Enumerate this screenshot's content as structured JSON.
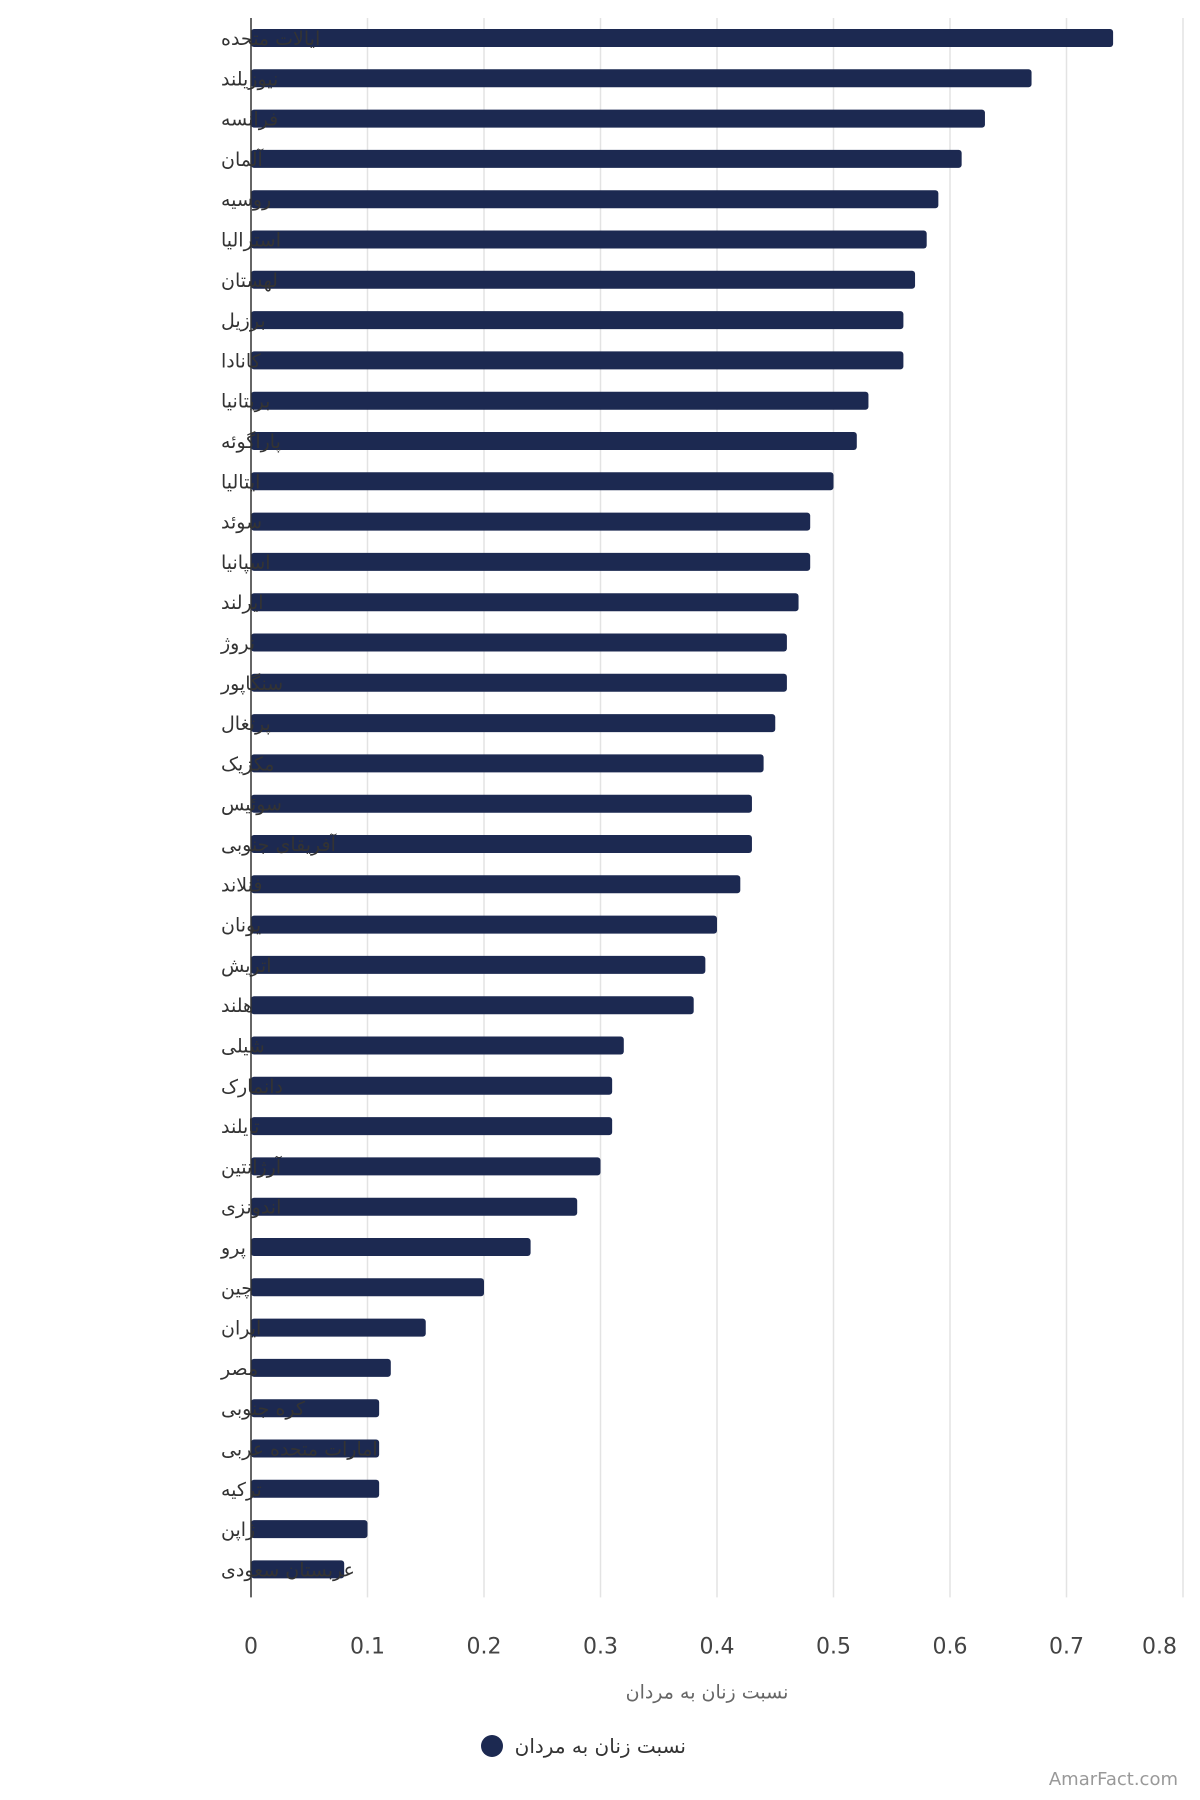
{
  "chart_data": {
    "type": "bar",
    "orientation": "horizontal",
    "categories": [
      "ایالات متحده",
      "نیوزیلند",
      "فرانسه",
      "آلمان",
      "روسیه",
      "استرالیا",
      "لهستان",
      "برزیل",
      "کانادا",
      "بریتانیا",
      "پاراگوئه",
      "ایتالیا",
      "سوئد",
      "اسپانیا",
      "ایرلند",
      "نروژ",
      "سنگاپور",
      "پرتغال",
      "مکزیک",
      "سوئیس",
      "آفریقای جنوبی",
      "فنلاند",
      "یونان",
      "اتریش",
      "هلند",
      "شیلی",
      "دانمارک",
      "تایلند",
      "آرژانتین",
      "اندونزی",
      "پرو",
      "چین",
      "ایران",
      "مصر",
      "کره جنوبی",
      "امارات متحده عربی",
      "ترکیه",
      "ژاپن",
      "عربستان سعودی"
    ],
    "series": [
      {
        "name": "نسبت زنان به مردان",
        "color": "#1c2951",
        "values": [
          0.74,
          0.67,
          0.63,
          0.61,
          0.59,
          0.58,
          0.57,
          0.56,
          0.56,
          0.53,
          0.52,
          0.5,
          0.48,
          0.48,
          0.47,
          0.46,
          0.46,
          0.45,
          0.44,
          0.43,
          0.43,
          0.42,
          0.4,
          0.39,
          0.38,
          0.32,
          0.31,
          0.31,
          0.3,
          0.28,
          0.24,
          0.2,
          0.15,
          0.12,
          0.11,
          0.11,
          0.11,
          0.1,
          0.08
        ]
      }
    ],
    "xlim": [
      0,
      0.8
    ],
    "xticks": [
      "0",
      "0.1",
      "0.2",
      "0.3",
      "0.4",
      "0.5",
      "0.6",
      "0.7",
      "0.8"
    ],
    "xlabel": "نسبت زنان به مردان",
    "ylabel": "",
    "grid": true,
    "legend": {
      "position": "bottom-center",
      "label": "نسبت زنان به مردان"
    },
    "credit": "AmarFact.com"
  }
}
